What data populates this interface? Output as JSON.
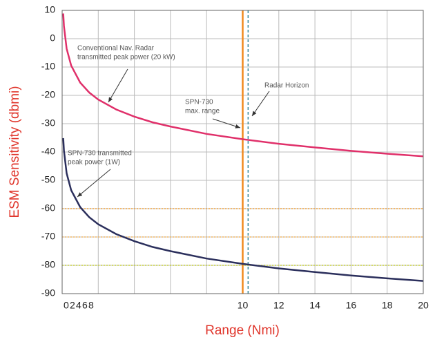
{
  "chart_data": {
    "type": "line",
    "ylabel": "ESM Sensitivity (dbmi)",
    "xlabel": "Range (Nmi)",
    "x": [
      0.06,
      0.1,
      0.25,
      0.5,
      1,
      1.5,
      2,
      3,
      4,
      5,
      6,
      8,
      10,
      12,
      14,
      16,
      18,
      20
    ],
    "series": [
      {
        "color": "#e0306a",
        "values": [
          8.9,
          4.5,
          -3.5,
          -9.5,
          -15.5,
          -19,
          -21.5,
          -25,
          -27.5,
          -29.5,
          -31,
          -33.6,
          -35.5,
          -37.1,
          -38.4,
          -39.6,
          -40.6,
          -41.5
        ]
      },
      {
        "color": "#2b2f5c",
        "values": [
          -35.1,
          -39.5,
          -47.5,
          -53.5,
          -59.5,
          -63,
          -65.5,
          -69,
          -71.5,
          -73.5,
          -75,
          -77.6,
          -79.5,
          -81.1,
          -82.4,
          -83.6,
          -84.6,
          -85.5
        ]
      }
    ],
    "xlim": [
      0,
      20
    ],
    "xticks": [
      0,
      2,
      4,
      6,
      8,
      10,
      12,
      14,
      16,
      18,
      20
    ],
    "ylim": [
      -90,
      10
    ],
    "yticks": [
      -90,
      -80,
      -70,
      -60,
      -50,
      -40,
      -30,
      -20,
      -10,
      0,
      10
    ],
    "grid": true,
    "reference_lines": [
      {
        "axis": "y",
        "value": -60,
        "color": "#f2a23a",
        "style": "dotted"
      },
      {
        "axis": "y",
        "value": -70,
        "color": "#f5b860",
        "style": "dotted"
      },
      {
        "axis": "y",
        "value": -80,
        "color": "#c8d23a",
        "style": "dotted"
      },
      {
        "axis": "x",
        "value": 10,
        "color": "#f08a1e",
        "style": "solid"
      },
      {
        "axis": "x",
        "value": 10.3,
        "color": "#3a8a9a",
        "style": "dashed"
      }
    ],
    "annotations": [
      {
        "lines": [
          "Conventional Nav. Radar",
          "transmitted peak power (20 kW)"
        ]
      },
      {
        "lines": [
          "Radar Horizon"
        ]
      },
      {
        "lines": [
          "SPN-730",
          "max. range"
        ]
      },
      {
        "lines": [
          "SPN-730 transmitted",
          "peak power (1W)"
        ]
      }
    ]
  }
}
